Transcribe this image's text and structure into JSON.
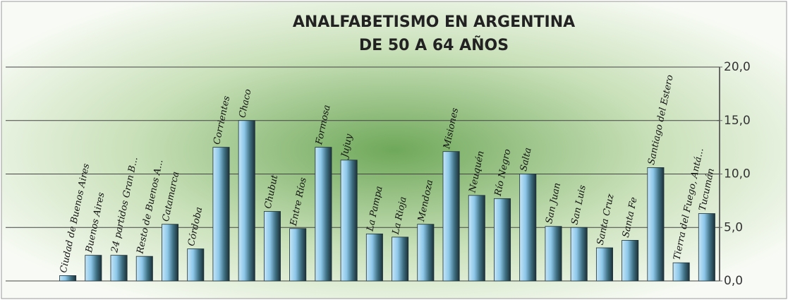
{
  "chart_data": {
    "type": "bar",
    "title": "ANALFABETISMO EN ARGENTINA",
    "subtitle": "DE 50 A 64 AÑOS",
    "categories": [
      "Ciudad de Buenos Aires",
      "Buenos Aires",
      "24 partidos Gran B...",
      "Resto de Buenos A...",
      "Catamarca",
      "Córdoba",
      "Corrientes",
      "Chaco",
      "Chubut",
      "Entre Ríos",
      "Formosa",
      "Jujuy",
      "La Pampa",
      "La Rioja",
      "Mendoza",
      "Misiones",
      "Neuquén",
      "Río Negro",
      "Salta",
      "San Juan",
      "San Luis",
      "Santa Cruz",
      "Santa Fe",
      "Santiago del Estero",
      "Tierra del Fuego, Antá...",
      "Tucumán"
    ],
    "values": [
      0.5,
      2.4,
      2.4,
      2.3,
      5.3,
      3.0,
      12.5,
      15.0,
      6.5,
      4.9,
      12.5,
      11.3,
      4.4,
      4.1,
      5.3,
      12.1,
      8.0,
      7.7,
      10.0,
      5.1,
      5.0,
      3.1,
      3.8,
      10.6,
      1.7,
      6.3
    ],
    "color": "#8ec8ea",
    "ylim": [
      0,
      20
    ],
    "yticks": [
      {
        "value": 0,
        "label": "0,0"
      },
      {
        "value": 5,
        "label": "5,0"
      },
      {
        "value": 10,
        "label": "10,0"
      },
      {
        "value": 15,
        "label": "15,0"
      },
      {
        "value": 20,
        "label": "20,0"
      }
    ],
    "grid": true,
    "yaxis_side": "right"
  }
}
